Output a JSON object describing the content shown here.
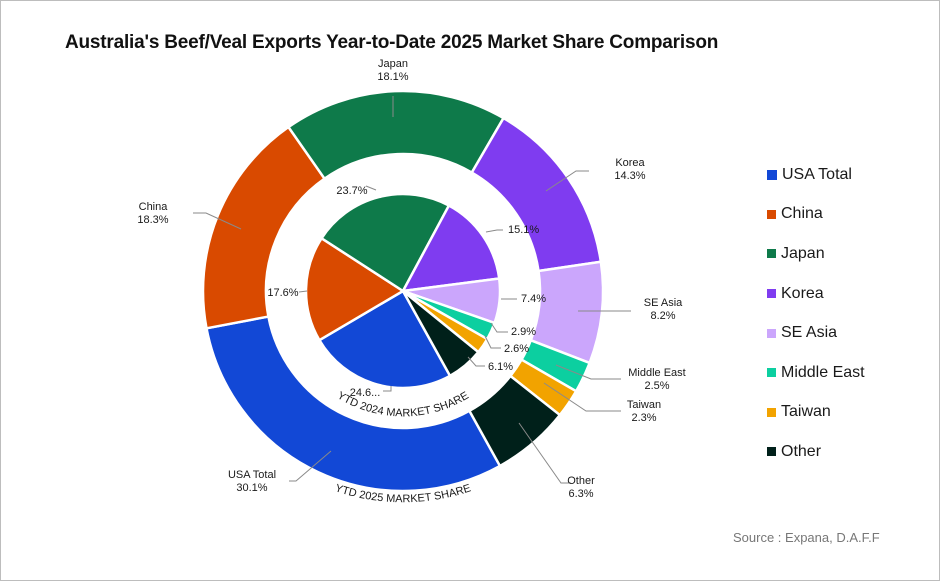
{
  "title": "Australia's Beef/Veal Exports Year-to-Date 2025 Market Share Comparison",
  "source": "Source : Expana, D.A.F.F",
  "chart_data": {
    "type": "pie",
    "title": "Australia's Beef/Veal Exports Year-to-Date 2025 Market Share Comparison",
    "categories": [
      "USA Total",
      "China",
      "Japan",
      "Korea",
      "SE Asia",
      "Middle East",
      "Taiwan",
      "Other"
    ],
    "colors": [
      "#1248d6",
      "#d94a00",
      "#0e7a4a",
      "#7f3cf0",
      "#cba6fc",
      "#0ccfa0",
      "#f2a300",
      "#00201a"
    ],
    "series": [
      {
        "name": "YTD 2025 MARKET SHARE",
        "ring": "outer",
        "values": [
          30.1,
          18.3,
          18.1,
          14.3,
          8.2,
          2.5,
          2.3,
          6.3
        ],
        "labels": [
          "30.1%",
          "18.3%",
          "18.1%",
          "14.3%",
          "8.2%",
          "2.5%",
          "2.3%",
          "6.3%"
        ]
      },
      {
        "name": "YTD 2024 MARKET SHARE",
        "ring": "inner",
        "values": [
          24.6,
          17.6,
          23.7,
          15.1,
          7.4,
          2.9,
          2.6,
          6.1
        ],
        "labels": [
          "24.6...",
          "17.6%",
          "23.7%",
          "15.1%",
          "7.4%",
          "2.9%",
          "2.6%",
          "6.1%"
        ]
      }
    ],
    "legend_position": "right"
  }
}
